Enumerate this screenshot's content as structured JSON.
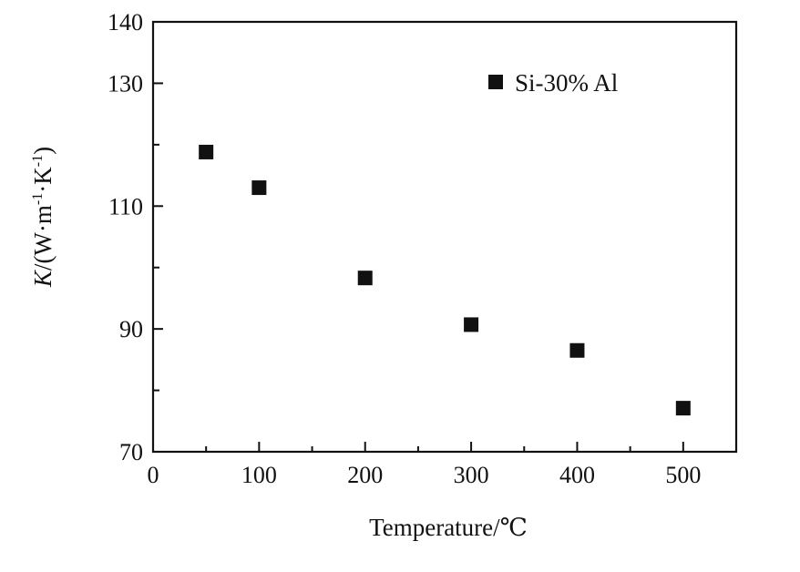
{
  "chart_data": {
    "type": "scatter",
    "title": "",
    "xlabel": "Temperature/℃",
    "ylabel_italic": "K",
    "ylabel_rest": "/(W·m",
    "ylabel_sup1": "-1",
    "ylabel_mid": "·K",
    "ylabel_sup2": "-1",
    "ylabel_close": ")",
    "xlim": [
      0,
      550
    ],
    "ylim": [
      70,
      140
    ],
    "x_major_ticks": [
      0,
      100,
      200,
      300,
      400,
      500
    ],
    "x_minor_ticks": [
      50,
      150,
      250,
      350,
      450,
      550
    ],
    "y_major_ticks": [
      70,
      90,
      110,
      130,
      140
    ],
    "y_minor_ticks": [
      80,
      100,
      120
    ],
    "x_tick_labels": [
      "0",
      "100",
      "200",
      "300",
      "400",
      "500"
    ],
    "y_tick_labels": [
      "70",
      "90",
      "110",
      "130",
      "140"
    ],
    "legend_position": "top-right",
    "grid": false,
    "series": [
      {
        "name": "Si-30% Al",
        "marker": "square",
        "color": "#111111",
        "x": [
          50,
          100,
          200,
          300,
          400,
          500
        ],
        "y": [
          118.8,
          113.0,
          98.3,
          90.7,
          86.5,
          77.1
        ]
      }
    ]
  }
}
